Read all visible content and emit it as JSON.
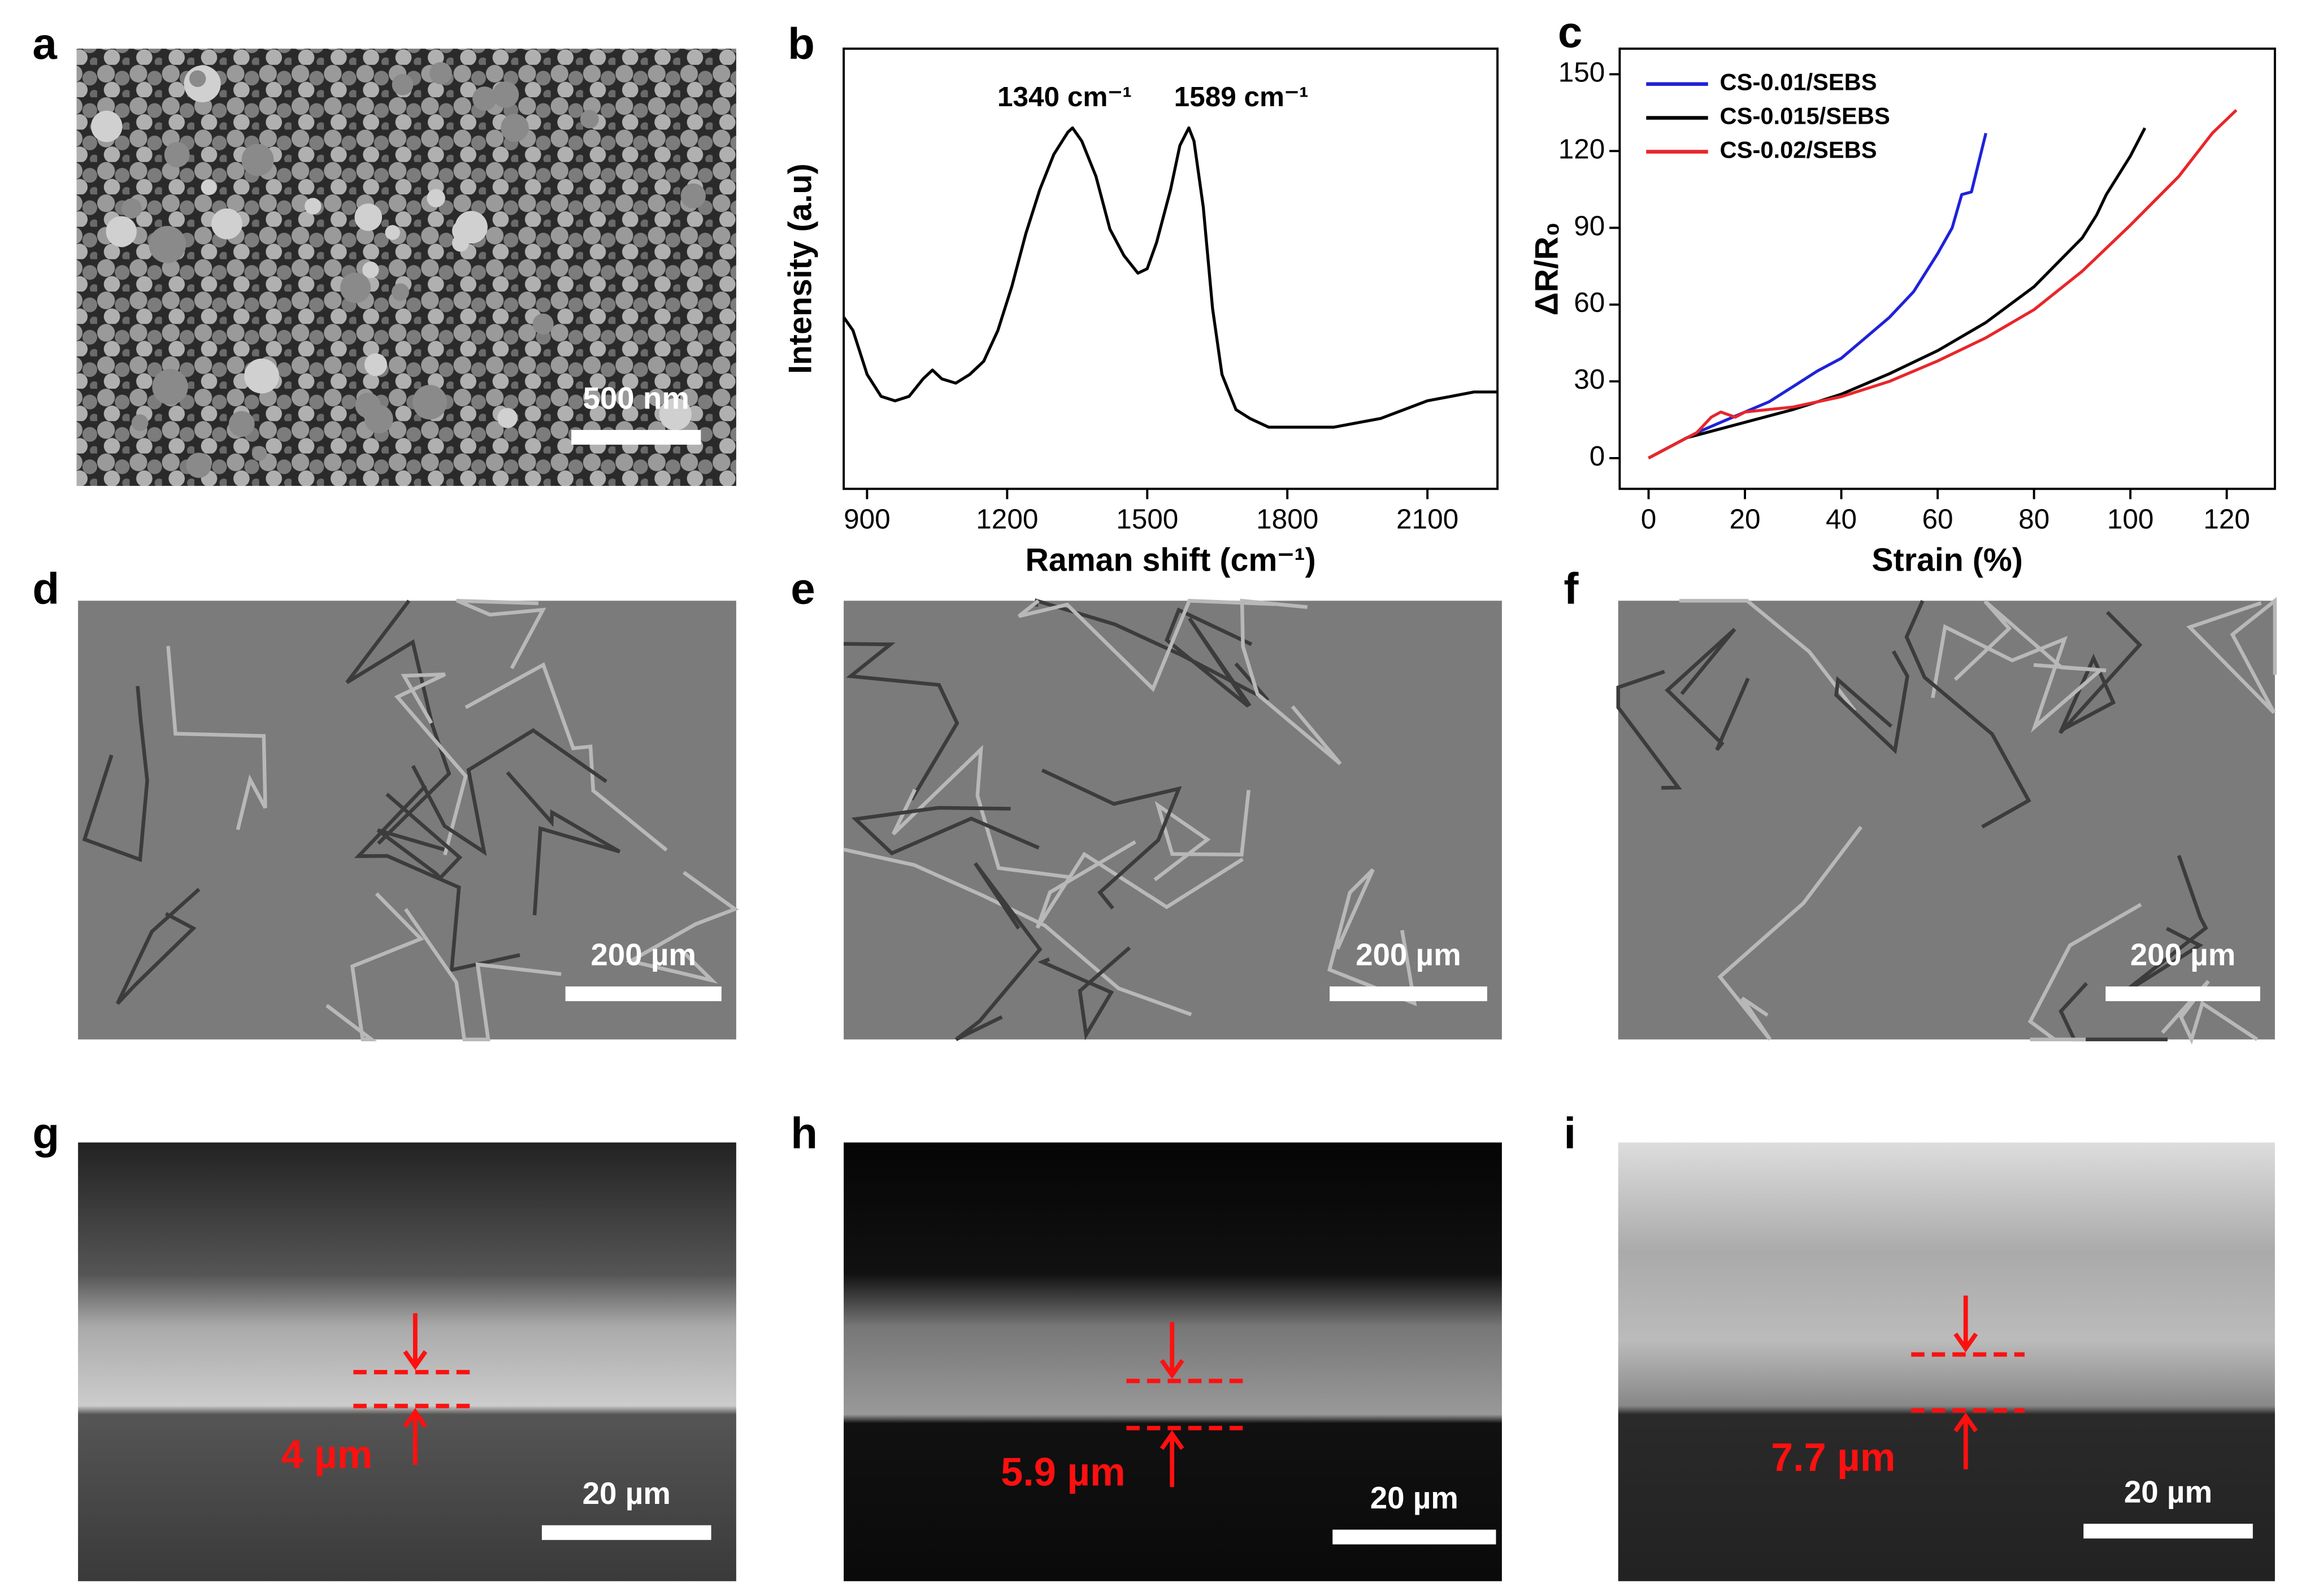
{
  "panels": [
    {
      "label": "a",
      "scale_bar": "500 nm"
    },
    {
      "label": "b"
    },
    {
      "label": "c"
    },
    {
      "label": "d",
      "scale_bar": "200 µm"
    },
    {
      "label": "e",
      "scale_bar": "200 µm"
    },
    {
      "label": "f",
      "scale_bar": "200 µm"
    },
    {
      "label": "g",
      "scale_bar": "20 µm",
      "thickness": "4 µm"
    },
    {
      "label": "h",
      "scale_bar": "20 µm",
      "thickness": "5.9 µm"
    },
    {
      "label": "i",
      "scale_bar": "20 µm",
      "thickness": "7.7 µm"
    }
  ],
  "chart_data": [
    {
      "type": "line",
      "xlabel": "Raman shift (cm⁻¹)",
      "ylabel": "Intensity (a.u)",
      "annotations": [
        "1340 cm⁻¹",
        "1589 cm⁻¹"
      ],
      "color": "#000000",
      "x": [
        850,
        870,
        900,
        930,
        960,
        990,
        1020,
        1040,
        1060,
        1090,
        1120,
        1150,
        1180,
        1210,
        1240,
        1270,
        1300,
        1330,
        1340,
        1360,
        1390,
        1420,
        1450,
        1480,
        1500,
        1520,
        1550,
        1570,
        1589,
        1600,
        1620,
        1640,
        1660,
        1690,
        1720,
        1760,
        1800,
        1850,
        1900,
        1950,
        2000,
        2050,
        2100,
        2150,
        2200,
        2250
      ],
      "values": [
        39,
        36,
        26,
        21,
        20,
        21,
        25,
        27,
        25,
        24,
        26,
        29,
        36,
        46,
        58,
        68,
        76,
        81,
        82,
        79,
        71,
        59,
        53,
        49,
        50,
        56,
        68,
        78,
        82,
        79,
        64,
        41,
        26,
        18,
        16,
        14,
        14,
        14,
        14,
        15,
        16,
        18,
        20,
        21,
        22,
        22
      ],
      "xlim": [
        850,
        2250
      ],
      "xticks": [
        900,
        1200,
        1500,
        1800,
        2100
      ],
      "ylim": [
        0,
        100
      ]
    },
    {
      "type": "line",
      "xlabel": "Strain (%)",
      "ylabel": "ΔR/R₀",
      "legend": "upper left",
      "xlim": [
        -6,
        130
      ],
      "xticks": [
        0,
        20,
        40,
        60,
        80,
        100,
        120
      ],
      "ylim": [
        -12,
        160
      ],
      "yticks": [
        0,
        30,
        60,
        90,
        120,
        150
      ],
      "series": [
        {
          "name": "CS-0.01/SEBS",
          "color": "#1f22d8",
          "x": [
            0,
            5,
            10,
            15,
            20,
            25,
            30,
            35,
            40,
            45,
            50,
            55,
            60,
            63,
            65,
            67,
            70
          ],
          "values": [
            0,
            5,
            10,
            14,
            18,
            22,
            28,
            34,
            39,
            47,
            55,
            65,
            80,
            90,
            103,
            104,
            127
          ]
        },
        {
          "name": "CS-0.015/SEBS",
          "color": "#000000",
          "x": [
            0,
            5,
            8,
            10,
            20,
            30,
            40,
            50,
            60,
            70,
            80,
            90,
            93,
            95,
            100,
            103
          ],
          "values": [
            0,
            5,
            8,
            9,
            14,
            19,
            25,
            33,
            42,
            53,
            67,
            86,
            95,
            103,
            118,
            129
          ]
        },
        {
          "name": "CS-0.02/SEBS",
          "color": "#e8262a",
          "x": [
            0,
            5,
            10,
            13,
            15,
            18,
            20,
            25,
            30,
            40,
            50,
            60,
            70,
            80,
            90,
            100,
            110,
            117,
            122
          ],
          "values": [
            0,
            5,
            10,
            16,
            18,
            16,
            18,
            19,
            20,
            24,
            30,
            38,
            47,
            58,
            73,
            91,
            110,
            127,
            136
          ]
        }
      ]
    }
  ]
}
